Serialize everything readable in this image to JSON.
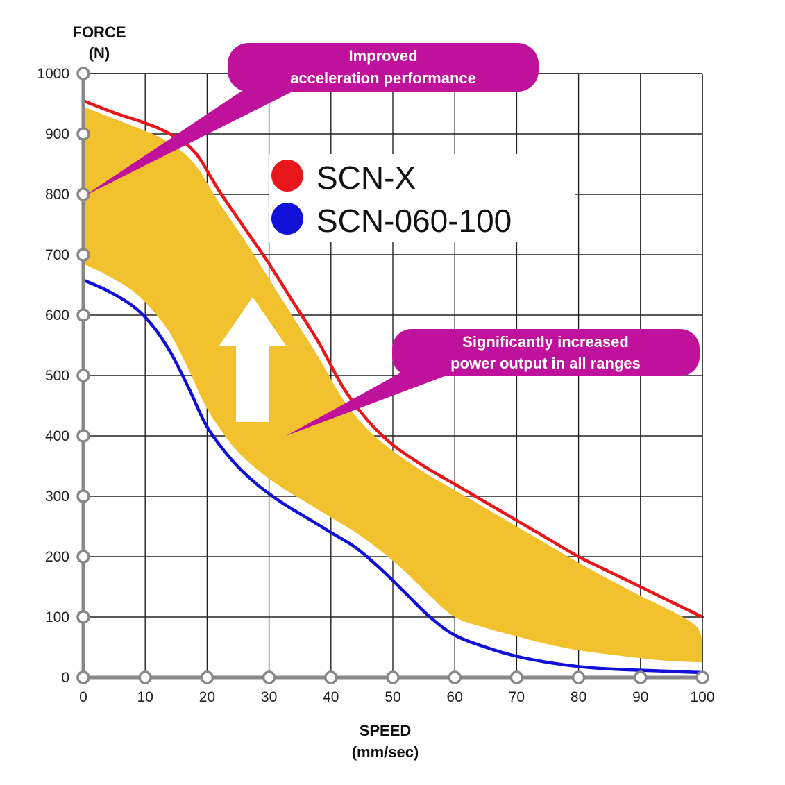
{
  "chart_data": {
    "type": "line",
    "y_axis": {
      "title_line1": "FORCE",
      "title_line2": "(N)",
      "ylim": [
        0,
        1000
      ],
      "ticks": [
        0,
        100,
        200,
        300,
        400,
        500,
        600,
        700,
        800,
        900,
        1000
      ]
    },
    "x_axis": {
      "title_line1": "SPEED",
      "title_line2": "(mm/sec)",
      "xlim": [
        0,
        100
      ],
      "ticks": [
        0,
        10,
        20,
        30,
        40,
        50,
        60,
        70,
        80,
        90,
        100
      ]
    },
    "grid": true,
    "legend_position": "top-center",
    "series": [
      {
        "name": "SCN-X",
        "color": "#e8171b",
        "points": [
          [
            0,
            955
          ],
          [
            5,
            935
          ],
          [
            10,
            918
          ],
          [
            14,
            900
          ],
          [
            18,
            870
          ],
          [
            22,
            805
          ],
          [
            26,
            745
          ],
          [
            30,
            685
          ],
          [
            34,
            620
          ],
          [
            38,
            555
          ],
          [
            42,
            480
          ],
          [
            46,
            425
          ],
          [
            50,
            385
          ],
          [
            55,
            350
          ],
          [
            60,
            320
          ],
          [
            65,
            290
          ],
          [
            70,
            260
          ],
          [
            75,
            230
          ],
          [
            80,
            200
          ],
          [
            85,
            175
          ],
          [
            90,
            150
          ],
          [
            95,
            125
          ],
          [
            100,
            100
          ]
        ]
      },
      {
        "name": "SCN-060-100",
        "color": "#1010d8",
        "points": [
          [
            0,
            658
          ],
          [
            4,
            640
          ],
          [
            8,
            615
          ],
          [
            11,
            585
          ],
          [
            14,
            540
          ],
          [
            17,
            480
          ],
          [
            20,
            415
          ],
          [
            24,
            360
          ],
          [
            28,
            320
          ],
          [
            32,
            290
          ],
          [
            36,
            265
          ],
          [
            40,
            240
          ],
          [
            44,
            215
          ],
          [
            48,
            180
          ],
          [
            52,
            140
          ],
          [
            56,
            100
          ],
          [
            60,
            70
          ],
          [
            65,
            50
          ],
          [
            70,
            35
          ],
          [
            75,
            25
          ],
          [
            80,
            18
          ],
          [
            85,
            14
          ],
          [
            90,
            12
          ],
          [
            95,
            10
          ],
          [
            100,
            8
          ]
        ]
      }
    ],
    "shaded_band": {
      "color": "#f2c12e",
      "upper": [
        [
          0,
          945
        ],
        [
          5,
          925
        ],
        [
          10,
          905
        ],
        [
          14,
          885
        ],
        [
          18,
          850
        ],
        [
          22,
          785
        ],
        [
          26,
          725
        ],
        [
          30,
          660
        ],
        [
          34,
          595
        ],
        [
          38,
          530
        ],
        [
          42,
          460
        ],
        [
          46,
          410
        ],
        [
          50,
          375
        ],
        [
          55,
          340
        ],
        [
          60,
          310
        ],
        [
          65,
          280
        ],
        [
          70,
          250
        ],
        [
          75,
          220
        ],
        [
          80,
          190
        ],
        [
          85,
          162
        ],
        [
          90,
          135
        ],
        [
          95,
          110
        ],
        [
          99,
          85
        ],
        [
          100,
          60
        ]
      ],
      "lower": [
        [
          100,
          25
        ],
        [
          95,
          27
        ],
        [
          90,
          32
        ],
        [
          85,
          38
        ],
        [
          80,
          45
        ],
        [
          75,
          55
        ],
        [
          70,
          68
        ],
        [
          65,
          82
        ],
        [
          60,
          100
        ],
        [
          56,
          135
        ],
        [
          52,
          175
        ],
        [
          48,
          210
        ],
        [
          44,
          240
        ],
        [
          40,
          265
        ],
        [
          36,
          290
        ],
        [
          32,
          315
        ],
        [
          28,
          345
        ],
        [
          24,
          385
        ],
        [
          20,
          445
        ],
        [
          17,
          510
        ],
        [
          14,
          570
        ],
        [
          11,
          610
        ],
        [
          8,
          640
        ],
        [
          4,
          665
        ],
        [
          0,
          685
        ]
      ]
    },
    "annotations": [
      {
        "line1": "Improved",
        "line2": "acceleration performance",
        "color": "#c0119c"
      },
      {
        "line1": "Significantly increased",
        "line2": "power output in all ranges",
        "color": "#c0119c"
      }
    ]
  }
}
